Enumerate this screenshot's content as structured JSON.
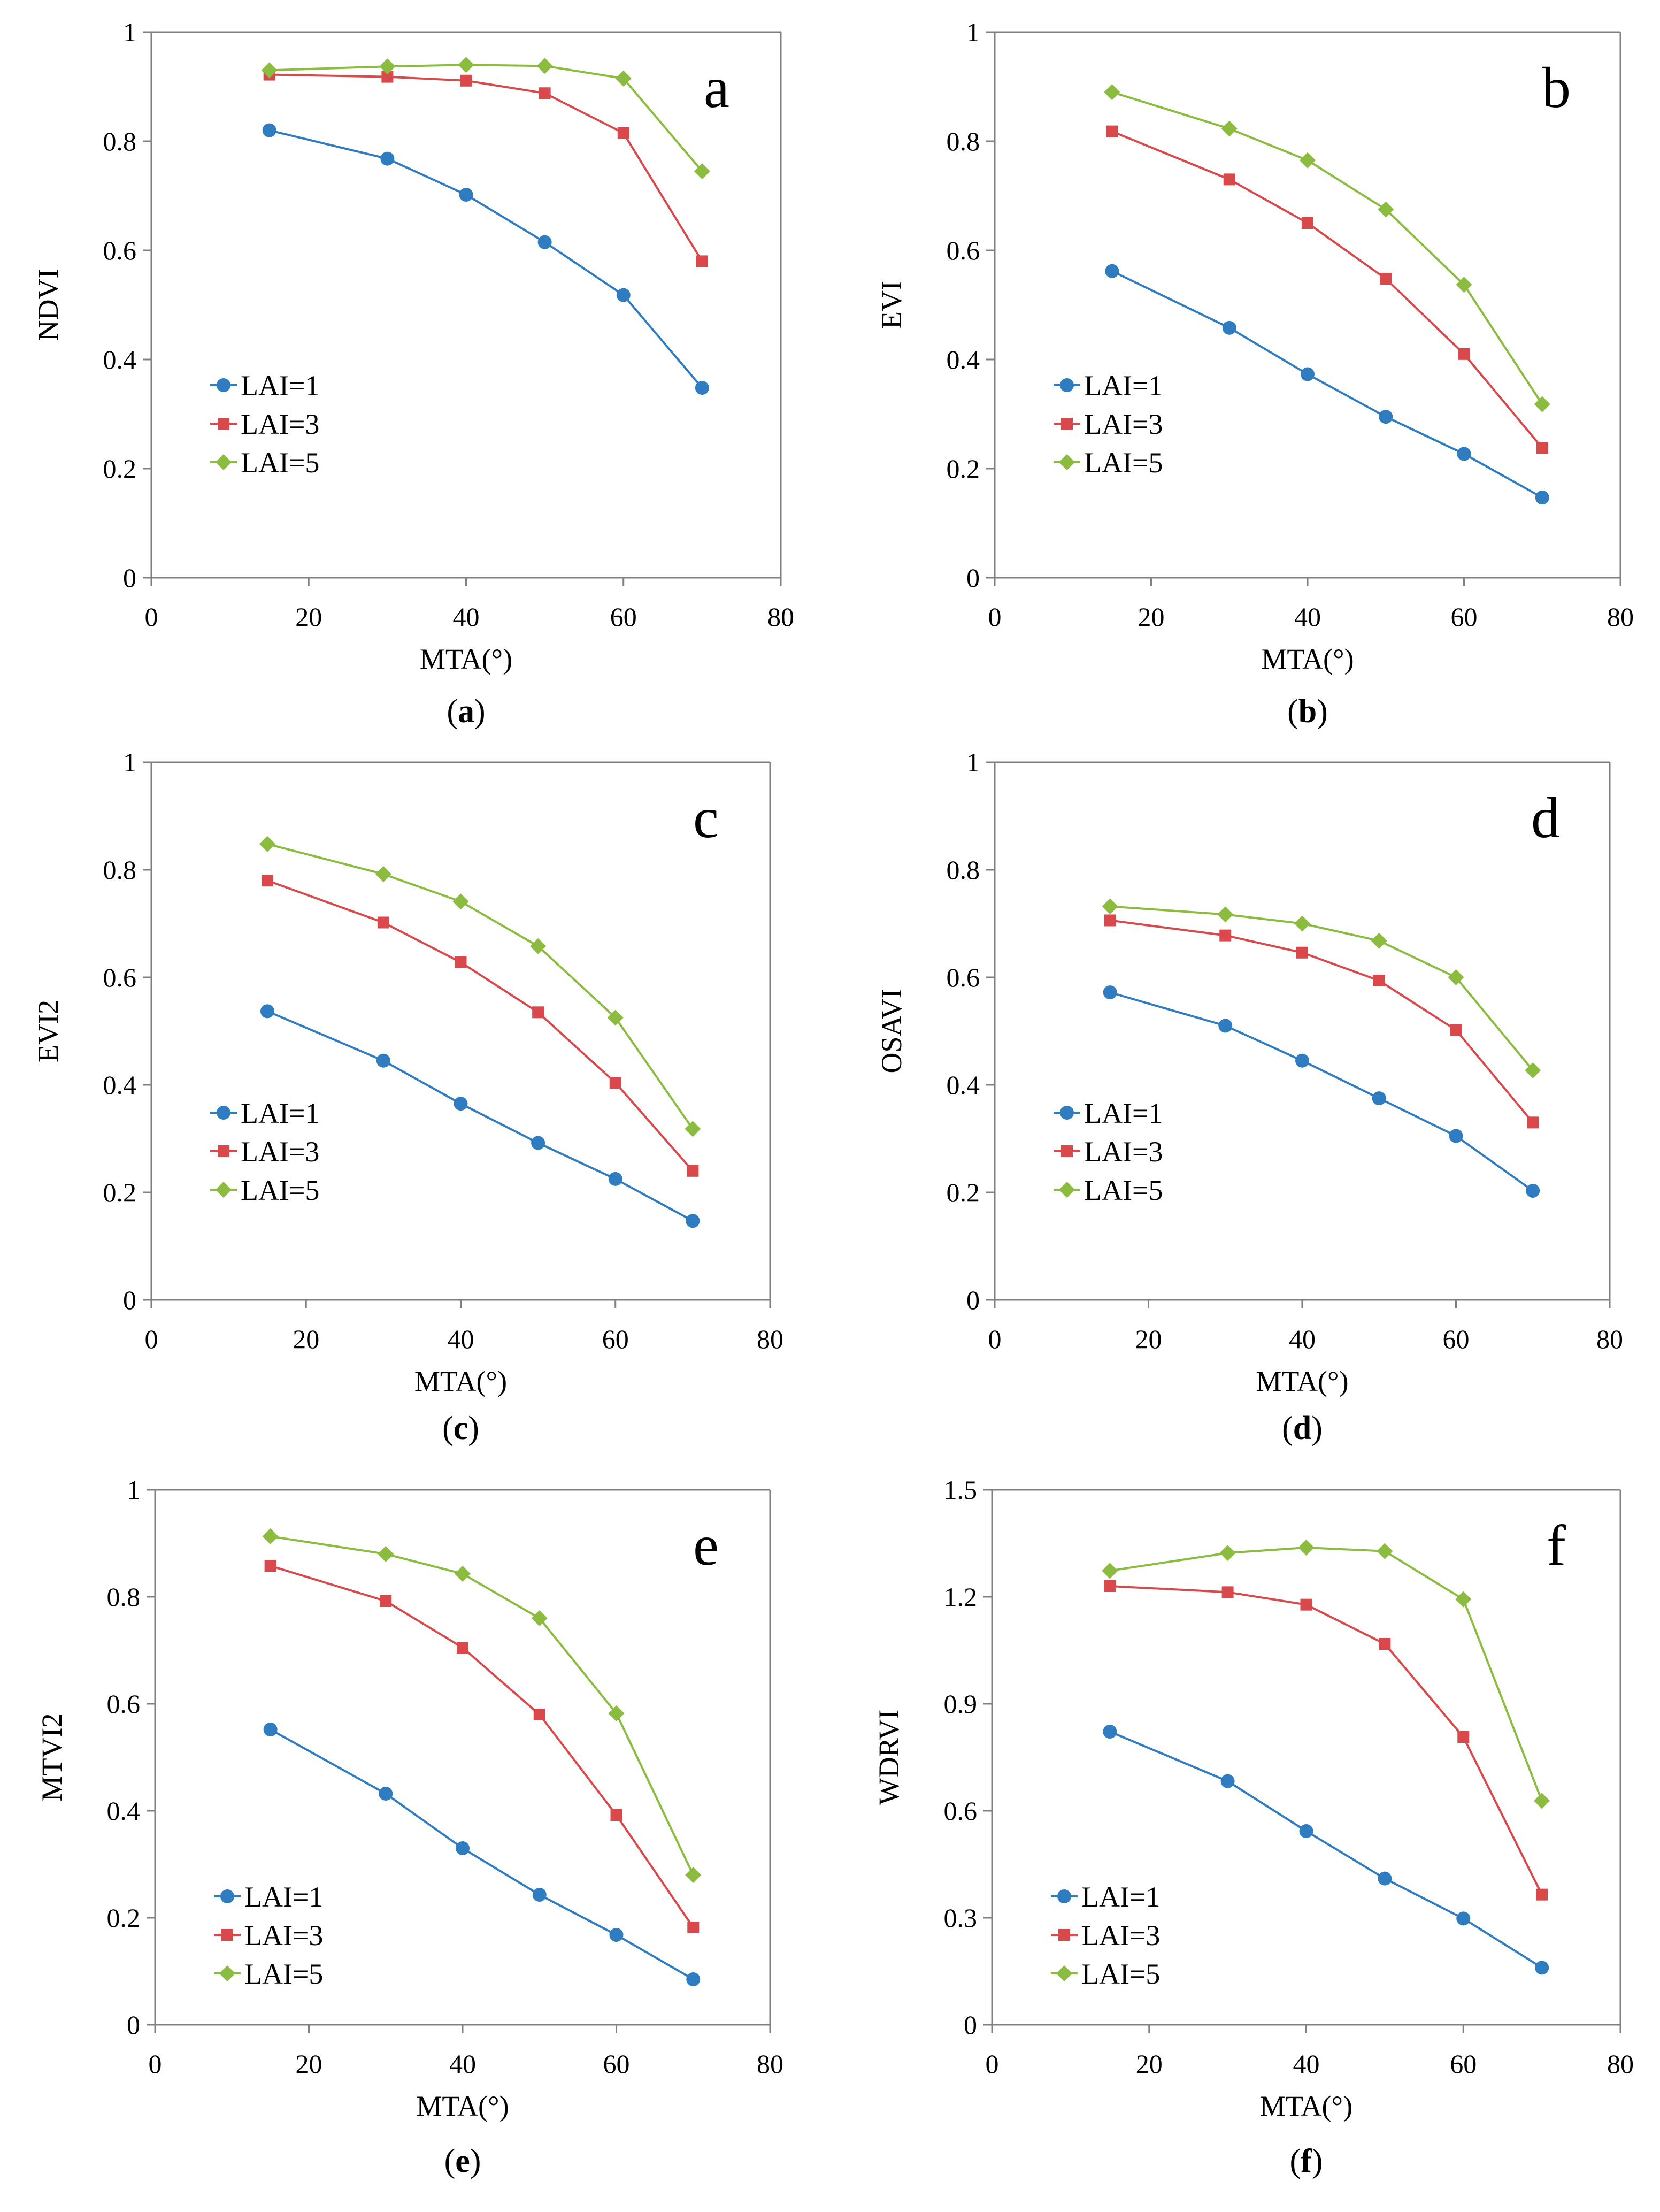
{
  "colors": {
    "series": [
      "#2f7cc1",
      "#d9494b",
      "#8cbc3f"
    ],
    "axis": "#808080"
  },
  "chart_data": [
    {
      "type": "line",
      "id": "a",
      "letter": "a",
      "caption_letter": "a",
      "xlabel": "MTA(°)",
      "ylabel": "NDVI",
      "xlim": [
        0,
        80
      ],
      "ylim": [
        0,
        1
      ],
      "xticks": [
        "0",
        "20",
        "40",
        "60",
        "80"
      ],
      "yticks": [
        "0",
        "0.2",
        "0.4",
        "0.6",
        "0.8",
        "1"
      ],
      "legend_position": "lower-left",
      "x": [
        15,
        30,
        40,
        50,
        60,
        70
      ],
      "series": [
        {
          "name": "LAI=1",
          "marker": "circle",
          "values": [
            0.82,
            0.768,
            0.702,
            0.615,
            0.518,
            0.348
          ]
        },
        {
          "name": "LAI=3",
          "marker": "square",
          "values": [
            0.922,
            0.918,
            0.911,
            0.888,
            0.815,
            0.58
          ]
        },
        {
          "name": "LAI=5",
          "marker": "diamond",
          "values": [
            0.93,
            0.937,
            0.94,
            0.938,
            0.915,
            0.745
          ]
        }
      ]
    },
    {
      "type": "line",
      "id": "b",
      "letter": "b",
      "caption_letter": "b",
      "xlabel": "MTA(°)",
      "ylabel": "EVI",
      "xlim": [
        0,
        80
      ],
      "ylim": [
        0,
        1
      ],
      "xticks": [
        "0",
        "20",
        "40",
        "60",
        "80"
      ],
      "yticks": [
        "0",
        "0.2",
        "0.4",
        "0.6",
        "0.8",
        "1"
      ],
      "legend_position": "lower-left",
      "x": [
        15,
        30,
        40,
        50,
        60,
        70
      ],
      "series": [
        {
          "name": "LAI=1",
          "marker": "circle",
          "values": [
            0.562,
            0.458,
            0.373,
            0.295,
            0.227,
            0.147
          ]
        },
        {
          "name": "LAI=3",
          "marker": "square",
          "values": [
            0.818,
            0.73,
            0.65,
            0.548,
            0.41,
            0.238
          ]
        },
        {
          "name": "LAI=5",
          "marker": "diamond",
          "values": [
            0.89,
            0.823,
            0.765,
            0.675,
            0.537,
            0.318
          ]
        }
      ]
    },
    {
      "type": "line",
      "id": "c",
      "letter": "c",
      "caption_letter": "c",
      "xlabel": "MTA(°)",
      "ylabel": "EVI2",
      "xlim": [
        0,
        80
      ],
      "ylim": [
        0,
        1
      ],
      "xticks": [
        "0",
        "20",
        "40",
        "60",
        "80"
      ],
      "yticks": [
        "0",
        "0.2",
        "0.4",
        "0.6",
        "0.8",
        "1"
      ],
      "legend_position": "lower-left",
      "x": [
        15,
        30,
        40,
        50,
        60,
        70
      ],
      "series": [
        {
          "name": "LAI=1",
          "marker": "circle",
          "values": [
            0.537,
            0.445,
            0.365,
            0.292,
            0.225,
            0.147
          ]
        },
        {
          "name": "LAI=3",
          "marker": "square",
          "values": [
            0.78,
            0.702,
            0.628,
            0.535,
            0.404,
            0.24
          ]
        },
        {
          "name": "LAI=5",
          "marker": "diamond",
          "values": [
            0.848,
            0.792,
            0.741,
            0.658,
            0.525,
            0.318
          ]
        }
      ]
    },
    {
      "type": "line",
      "id": "d",
      "letter": "d",
      "caption_letter": "d",
      "xlabel": "MTA(°)",
      "ylabel": "OSAVI",
      "xlim": [
        0,
        80
      ],
      "ylim": [
        0,
        1
      ],
      "xticks": [
        "0",
        "20",
        "40",
        "60",
        "80"
      ],
      "yticks": [
        "0",
        "0.2",
        "0.4",
        "0.6",
        "0.8",
        "1"
      ],
      "legend_position": "lower-left",
      "x": [
        15,
        30,
        40,
        50,
        60,
        70
      ],
      "series": [
        {
          "name": "LAI=1",
          "marker": "circle",
          "values": [
            0.572,
            0.51,
            0.445,
            0.375,
            0.305,
            0.203
          ]
        },
        {
          "name": "LAI=3",
          "marker": "square",
          "values": [
            0.706,
            0.678,
            0.646,
            0.594,
            0.502,
            0.33
          ]
        },
        {
          "name": "LAI=5",
          "marker": "diamond",
          "values": [
            0.732,
            0.717,
            0.7,
            0.668,
            0.6,
            0.427
          ]
        }
      ]
    },
    {
      "type": "line",
      "id": "e",
      "letter": "e",
      "caption_letter": "e",
      "xlabel": "MTA(°)",
      "ylabel": "MTVI2",
      "xlim": [
        0,
        80
      ],
      "ylim": [
        0,
        1
      ],
      "xticks": [
        "0",
        "20",
        "40",
        "60",
        "80"
      ],
      "yticks": [
        "0",
        "0.2",
        "0.4",
        "0.6",
        "0.8",
        "1"
      ],
      "legend_position": "lower-left",
      "x": [
        15,
        30,
        40,
        50,
        60,
        70
      ],
      "series": [
        {
          "name": "LAI=1",
          "marker": "circle",
          "values": [
            0.552,
            0.432,
            0.33,
            0.243,
            0.168,
            0.085
          ]
        },
        {
          "name": "LAI=3",
          "marker": "square",
          "values": [
            0.858,
            0.792,
            0.705,
            0.58,
            0.392,
            0.182
          ]
        },
        {
          "name": "LAI=5",
          "marker": "diamond",
          "values": [
            0.913,
            0.88,
            0.843,
            0.76,
            0.582,
            0.28
          ]
        }
      ]
    },
    {
      "type": "line",
      "id": "f",
      "letter": "f",
      "caption_letter": "f",
      "xlabel": "MTA(°)",
      "ylabel": "WDRVI",
      "xlim": [
        0,
        80
      ],
      "ylim": [
        0,
        1.5
      ],
      "xticks": [
        "0",
        "20",
        "40",
        "60",
        "80"
      ],
      "yticks": [
        "0",
        "0.3",
        "0.6",
        "0.9",
        "1.2",
        "1.5"
      ],
      "legend_position": "lower-left",
      "x": [
        15,
        30,
        40,
        50,
        60,
        70
      ],
      "series": [
        {
          "name": "LAI=1",
          "marker": "circle",
          "values": [
            0.822,
            0.683,
            0.543,
            0.41,
            0.298,
            0.16
          ]
        },
        {
          "name": "LAI=3",
          "marker": "square",
          "values": [
            1.23,
            1.213,
            1.178,
            1.068,
            0.807,
            0.365
          ]
        },
        {
          "name": "LAI=5",
          "marker": "diamond",
          "values": [
            1.273,
            1.323,
            1.338,
            1.328,
            1.193,
            0.628
          ]
        }
      ]
    }
  ]
}
